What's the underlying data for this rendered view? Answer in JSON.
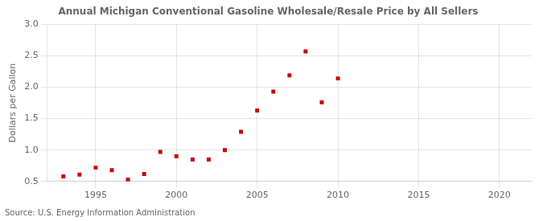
{
  "chart_data": {
    "type": "scatter",
    "title": "Annual Michigan Conventional Gasoline Wholesale/Resale Price by All Sellers",
    "ylabel": "Dollars per Gallon",
    "source": "Source: U.S. Energy Information Administration",
    "x": [
      1993,
      1994,
      1995,
      1996,
      1997,
      1998,
      1999,
      2000,
      2001,
      2002,
      2003,
      2004,
      2005,
      2006,
      2007,
      2008,
      2009,
      2010
    ],
    "values": [
      0.58,
      0.61,
      0.72,
      0.68,
      0.53,
      0.62,
      0.97,
      0.9,
      0.85,
      0.85,
      1.0,
      1.29,
      1.63,
      1.93,
      2.19,
      2.57,
      1.76,
      2.14
    ],
    "color": "#cc0000",
    "marker": "square",
    "xlim": [
      1992,
      2022
    ],
    "xticks": [
      1995,
      2000,
      2005,
      2010,
      2015,
      2020
    ],
    "ylim": [
      0.5,
      3.0
    ],
    "yticks": [
      0.5,
      {
        "value": 1.0,
        "label": "1.0"
      },
      1.5,
      {
        "value": 2.0,
        "label": "2.0"
      },
      2.5,
      {
        "value": 3.0,
        "label": "3.0"
      }
    ],
    "grid": true
  }
}
